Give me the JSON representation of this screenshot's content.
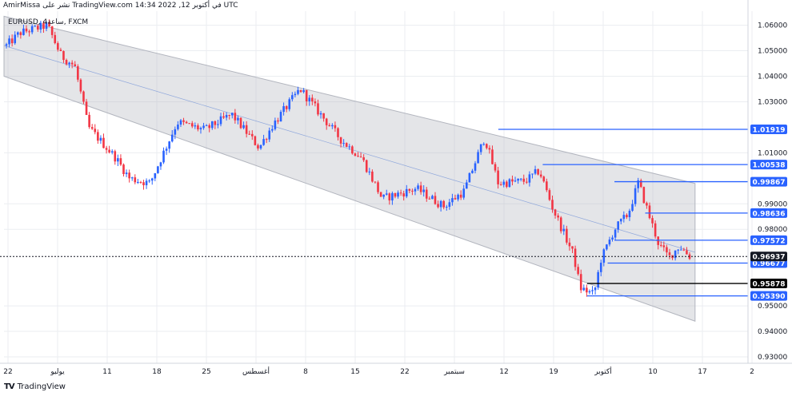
{
  "header": {
    "text": "AmirMissa نشر على TradingView.com في أكتوبر 12, 2022 14:34 UTC"
  },
  "symbol": {
    "label": "EURUSD, ساعة4, FXCM"
  },
  "branding": {
    "logo_mark": "TV",
    "name": "TradingView"
  },
  "colors": {
    "bull": "#2962ff",
    "bear": "#f23645",
    "channel_fill": "#b2b5be",
    "level_line": "#2962ff",
    "label_bg": "#2962ff",
    "current_label_bg": "#131722",
    "black_label_bg": "#000000",
    "grid": "#ebedf1",
    "axis_text": "#131722",
    "background": "#ffffff"
  },
  "chart_data": {
    "type": "candlestick",
    "symbol": "EURUSD",
    "timeframe": "4H",
    "ylim": [
      0.9275,
      1.0655
    ],
    "y_ticks": [
      1.06,
      1.05,
      1.04,
      1.03,
      1.01,
      0.99,
      0.98,
      0.95,
      0.94,
      0.93
    ],
    "y_tick_labels": [
      "1.06000",
      "1.05000",
      "1.04000",
      "1.03000",
      "1.01000",
      "0.99000",
      "0.98000",
      "0.95000",
      "0.94000",
      "0.93000"
    ],
    "x_tick_labels": [
      "22",
      "يوليو",
      "11",
      "18",
      "25",
      "أغسطس",
      "8",
      "15",
      "22",
      "سبتمبر",
      "12",
      "19",
      "أكتوبر",
      "10",
      "17",
      "2"
    ],
    "price_path": [
      {
        "t": 0.0,
        "p": 1.052
      },
      {
        "t": 0.02,
        "p": 1.057
      },
      {
        "t": 0.06,
        "p": 1.06
      },
      {
        "t": 0.08,
        "p": 1.048
      },
      {
        "t": 0.1,
        "p": 1.044
      },
      {
        "t": 0.12,
        "p": 1.02
      },
      {
        "t": 0.16,
        "p": 1.008
      },
      {
        "t": 0.18,
        "p": 1.0
      },
      {
        "t": 0.21,
        "p": 0.998
      },
      {
        "t": 0.25,
        "p": 1.022
      },
      {
        "t": 0.29,
        "p": 1.019
      },
      {
        "t": 0.33,
        "p": 1.025
      },
      {
        "t": 0.37,
        "p": 1.012
      },
      {
        "t": 0.39,
        "p": 1.021
      },
      {
        "t": 0.43,
        "p": 1.035
      },
      {
        "t": 0.46,
        "p": 1.025
      },
      {
        "t": 0.49,
        "p": 1.015
      },
      {
        "t": 0.52,
        "p": 1.008
      },
      {
        "t": 0.55,
        "p": 0.992
      },
      {
        "t": 0.6,
        "p": 0.996
      },
      {
        "t": 0.64,
        "p": 0.989
      },
      {
        "t": 0.67,
        "p": 0.995
      },
      {
        "t": 0.7,
        "p": 1.016
      },
      {
        "t": 0.72,
        "p": 0.998
      },
      {
        "t": 0.76,
        "p": 0.999
      },
      {
        "t": 0.78,
        "p": 1.003
      },
      {
        "t": 0.8,
        "p": 0.988
      },
      {
        "t": 0.83,
        "p": 0.97
      },
      {
        "t": 0.84,
        "p": 0.957
      },
      {
        "t": 0.86,
        "p": 0.9545
      },
      {
        "t": 0.87,
        "p": 0.968
      },
      {
        "t": 0.89,
        "p": 0.98
      },
      {
        "t": 0.91,
        "p": 0.986
      },
      {
        "t": 0.925,
        "p": 0.9985
      },
      {
        "t": 0.94,
        "p": 0.986
      },
      {
        "t": 0.955,
        "p": 0.974
      },
      {
        "t": 0.97,
        "p": 0.969
      },
      {
        "t": 0.985,
        "p": 0.9735
      },
      {
        "t": 1.0,
        "p": 0.9694
      }
    ],
    "levels": [
      {
        "value": 1.01919,
        "label": "1.01919",
        "from_t": 0.72,
        "style": "blue"
      },
      {
        "value": 1.00538,
        "label": "1.00538",
        "from_t": 0.785,
        "style": "blue"
      },
      {
        "value": 0.99867,
        "label": "0.99867",
        "from_t": 0.89,
        "style": "blue"
      },
      {
        "value": 0.98636,
        "label": "0.98636",
        "from_t": 0.935,
        "style": "blue"
      },
      {
        "value": 0.97572,
        "label": "0.97572",
        "from_t": 0.89,
        "style": "blue"
      },
      {
        "value": 0.96677,
        "label": "0.96677",
        "from_t": 0.88,
        "style": "blue"
      },
      {
        "value": 0.95878,
        "label": "0.95878",
        "from_t": 0.85,
        "style": "black"
      },
      {
        "value": 0.9539,
        "label": "0.95390",
        "from_t": 0.85,
        "style": "blue"
      }
    ],
    "current_price": {
      "value": 0.96937,
      "label": "0.96937"
    },
    "channel": {
      "upper_start": 1.0635,
      "upper_end": 0.998,
      "lower_start": 1.04,
      "lower_end": 0.944,
      "mid_start": 1.052,
      "mid_end": 0.971,
      "end_t": 1.008
    }
  }
}
